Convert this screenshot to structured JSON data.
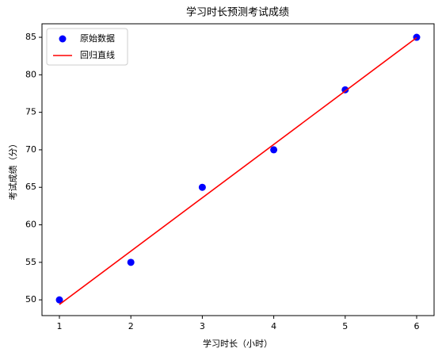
{
  "chart_data": {
    "type": "scatter_line",
    "title": "学习时长预测考试成绩",
    "xlabel": "学习时长（小时）",
    "ylabel": "考试成绩（分）",
    "series": [
      {
        "name": "原始数据",
        "kind": "scatter",
        "color": "#0000ff",
        "x": [
          1,
          2,
          3,
          4,
          5,
          6
        ],
        "values": [
          50,
          55,
          65,
          70,
          78,
          85
        ]
      },
      {
        "name": "回归直线",
        "kind": "line",
        "color": "#ff0000",
        "x": [
          1,
          6
        ],
        "values": [
          49.38,
          84.95
        ]
      }
    ],
    "xlim": [
      0.756,
      6.244
    ],
    "xticks": [
      1,
      2,
      3,
      4,
      5,
      6
    ],
    "ylim": [
      47.9,
      86.8
    ],
    "yticks": [
      50,
      55,
      60,
      65,
      70,
      75,
      80,
      85
    ],
    "legend": "upper left",
    "grid": false
  }
}
